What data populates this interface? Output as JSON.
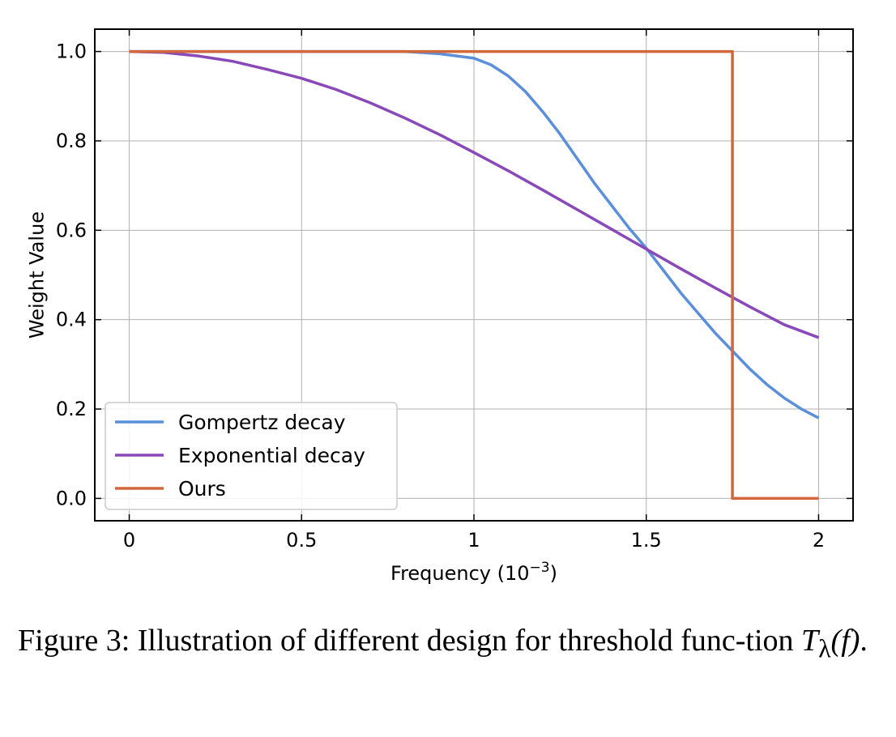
{
  "chart_data": {
    "type": "line",
    "xlabel": "Frequency (10",
    "xlabel_exp": "−3",
    "xlabel_close": ")",
    "ylabel": "Weight Value",
    "xlim": [
      -0.1,
      2.1
    ],
    "ylim": [
      -0.05,
      1.05
    ],
    "x_ticks": [
      0,
      0.5,
      1,
      1.5,
      2
    ],
    "x_tick_labels": [
      "0",
      "0.5",
      "1",
      "1.5",
      "2"
    ],
    "y_ticks": [
      0.0,
      0.2,
      0.4,
      0.6,
      0.8,
      1.0
    ],
    "y_tick_labels": [
      "0.0",
      "0.2",
      "0.4",
      "0.6",
      "0.8",
      "1.0"
    ],
    "grid": true,
    "legend_position": "bottom-left",
    "series": [
      {
        "name": "Gompertz decay",
        "color": "#5b8fd9",
        "x": [
          0,
          0.2,
          0.4,
          0.6,
          0.8,
          0.9,
          1.0,
          1.05,
          1.1,
          1.15,
          1.2,
          1.25,
          1.3,
          1.35,
          1.4,
          1.45,
          1.5,
          1.55,
          1.6,
          1.65,
          1.7,
          1.75,
          1.8,
          1.85,
          1.9,
          1.95,
          2.0
        ],
        "y": [
          1.0,
          1.0,
          1.0,
          1.0,
          1.0,
          0.995,
          0.985,
          0.97,
          0.945,
          0.91,
          0.865,
          0.815,
          0.76,
          0.705,
          0.655,
          0.605,
          0.56,
          0.51,
          0.46,
          0.415,
          0.37,
          0.33,
          0.29,
          0.255,
          0.225,
          0.2,
          0.18
        ]
      },
      {
        "name": "Exponential decay",
        "color": "#8a49b8",
        "x": [
          0,
          0.1,
          0.2,
          0.3,
          0.4,
          0.5,
          0.6,
          0.7,
          0.8,
          0.9,
          1.0,
          1.1,
          1.2,
          1.3,
          1.4,
          1.5,
          1.6,
          1.7,
          1.8,
          1.9,
          2.0
        ],
        "y": [
          1.0,
          0.998,
          0.99,
          0.978,
          0.96,
          0.94,
          0.915,
          0.885,
          0.851,
          0.814,
          0.774,
          0.733,
          0.69,
          0.646,
          0.602,
          0.558,
          0.514,
          0.471,
          0.429,
          0.389,
          0.36
        ]
      },
      {
        "name": "Ours",
        "color": "#d2673c",
        "x": [
          0,
          1.75,
          1.75,
          2.0
        ],
        "y": [
          1.0,
          1.0,
          0.0,
          0.0
        ]
      }
    ]
  },
  "caption": {
    "prefix": "Figure 3: Illustration of different design for threshold func-tion ",
    "math_base": "T",
    "math_sub": "λ",
    "math_arg": "(f)",
    "suffix": "."
  }
}
